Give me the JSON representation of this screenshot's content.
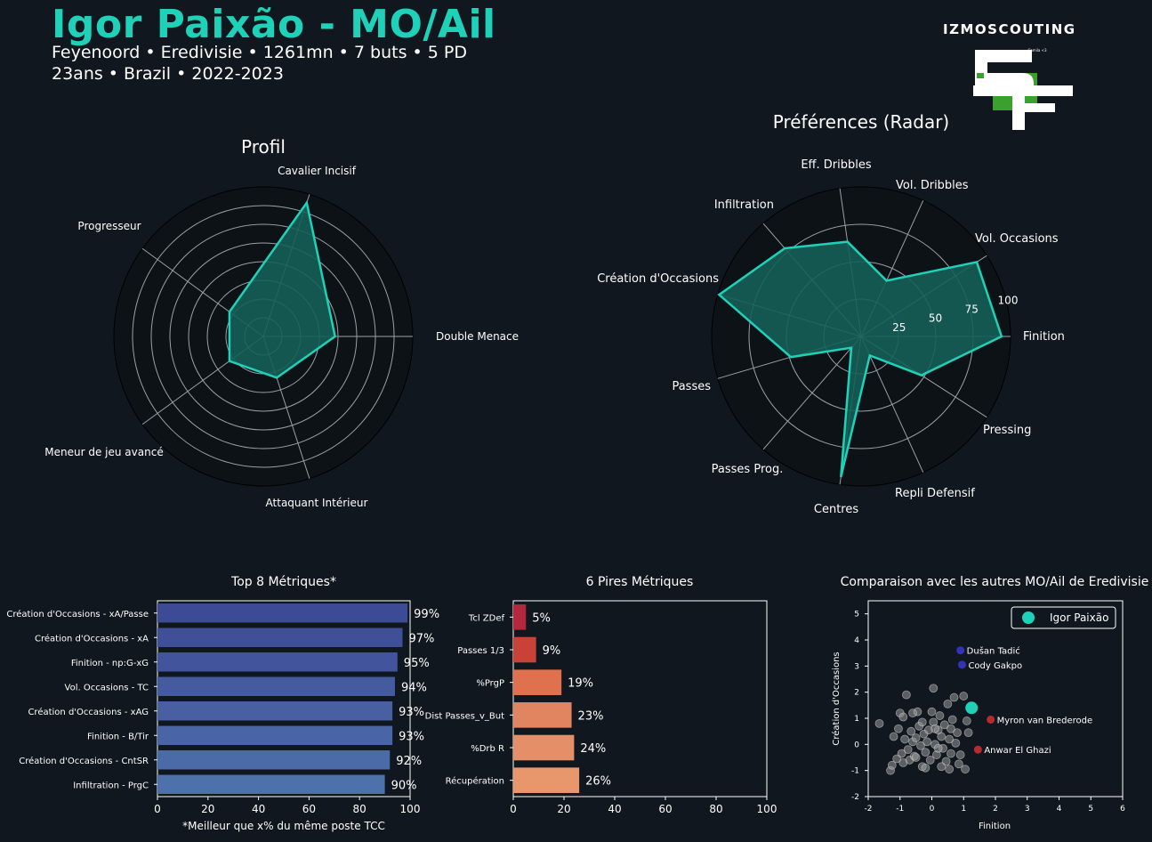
{
  "header": {
    "player_title": "Igor Paixão - MO/Ail",
    "line1": "Feyenoord • Eredivisie • 1261mn • 7 buts • 5 PD",
    "line2": "23ans • Brazil • 2022-2023",
    "brand": "IZMOSCOUTING",
    "logo_small_text": "Camila <3"
  },
  "colors": {
    "accent": "#1ed1b8",
    "background": "#10171e",
    "radar_fill": "#155f58",
    "grid": "#9aa1a6",
    "logo_green": "#3aa12e",
    "scatter_highlight": "#1ed1b8",
    "scatter_blue": "#3a3ad0",
    "scatter_red": "#d13030",
    "scatter_grey": "#9a9a9a"
  },
  "chart_data": [
    {
      "type": "radar",
      "title": "Profil",
      "categories": [
        "Double Menace",
        "Cavalier Incisif",
        "Progresseur",
        "Meneur de jeu avancé",
        "Attaquant Intérieur"
      ],
      "values": [
        48,
        94,
        28,
        28,
        29
      ],
      "rlim": [
        0,
        100
      ],
      "grid": true
    },
    {
      "type": "radar",
      "title": "Préférences (Radar)",
      "categories": [
        "Finition",
        "Vol. Occasions",
        "Vol. Dribbles",
        "Eff. Dribbles",
        "Infiltration",
        "Création d'Occasions",
        "Passes",
        "Passes Prog.",
        "Centres",
        "Repli Defensif",
        "Pressing"
      ],
      "values": [
        94,
        92,
        41,
        64,
        78,
        99,
        49,
        10,
        95,
        14,
        48
      ],
      "rlim": [
        0,
        100
      ],
      "tick_labels": [
        "25",
        "50",
        "75",
        "100"
      ],
      "grid": true
    },
    {
      "type": "bar",
      "orientation": "horizontal",
      "title": "Top 8 Métriques*",
      "xlabel": "*Meilleur que x% du même poste TCC",
      "categories": [
        "Création d'Occasions - xA/Passe",
        "Création d'Occasions - xA",
        "Finition - np:G-xG",
        "Vol. Occasions - TC",
        "Création d'Occasions - xAG",
        "Finition - B/Tir",
        "Création d'Occasions - CntSR",
        "Infiltration - PrgC"
      ],
      "values": [
        99,
        97,
        95,
        94,
        93,
        93,
        92,
        90
      ],
      "value_labels": [
        "99%",
        "97%",
        "95%",
        "94%",
        "93%",
        "93%",
        "92%",
        "90%"
      ],
      "colors": [
        "#3d4a95",
        "#3f4f98",
        "#42559c",
        "#455b9f",
        "#4860a2",
        "#4965a5",
        "#4b6ba8",
        "#4d71ab"
      ],
      "xlim": [
        0,
        100
      ],
      "xticks": [
        "0",
        "20",
        "40",
        "60",
        "80",
        "100"
      ]
    },
    {
      "type": "bar",
      "orientation": "horizontal",
      "title": "6 Pires Métriques",
      "categories": [
        "Tcl ZDef",
        "Passes 1/3",
        "%PrgP",
        "Dist Passes_v_But",
        "%Drb R",
        "Récupération"
      ],
      "values": [
        5,
        9,
        19,
        23,
        24,
        26
      ],
      "value_labels": [
        "5%",
        "9%",
        "19%",
        "23%",
        "24%",
        "26%"
      ],
      "colors": [
        "#b3283a",
        "#c94238",
        "#e0714f",
        "#e18560",
        "#e48f67",
        "#e8976d"
      ],
      "xlim": [
        0,
        100
      ],
      "xticks": [
        "0",
        "20",
        "40",
        "60",
        "80",
        "100"
      ]
    },
    {
      "type": "scatter",
      "title": "Comparaison avec les autres MO/Ail de Eredivisie",
      "xlabel": "Finition",
      "ylabel": "Création d'Occasions",
      "xlim": [
        -2,
        6
      ],
      "ylim": [
        -2,
        5.5
      ],
      "xticks": [
        "-2",
        "-1",
        "0",
        "1",
        "2",
        "3",
        "4",
        "5",
        "6"
      ],
      "yticks": [
        "-2",
        "-1",
        "0",
        "1",
        "2",
        "3",
        "4",
        "5"
      ],
      "legend": {
        "label": "Igor Paixão",
        "position": "top-right"
      },
      "highlight": {
        "name": "Igor Paixão",
        "x": 1.25,
        "y": 1.4
      },
      "labeled_points": [
        {
          "name": "Dušan Tadić",
          "x": 0.9,
          "y": 3.6,
          "group": "blue"
        },
        {
          "name": "Cody Gakpo",
          "x": 0.95,
          "y": 3.05,
          "group": "blue"
        },
        {
          "name": "Myron van Brederode",
          "x": 1.85,
          "y": 0.95,
          "group": "red"
        },
        {
          "name": "Anwar El Ghazi",
          "x": 1.45,
          "y": -0.2,
          "group": "red"
        }
      ],
      "others": [
        [
          -1.65,
          0.8
        ],
        [
          -1.3,
          -1.0
        ],
        [
          -1.25,
          -0.8
        ],
        [
          -1.2,
          0.3
        ],
        [
          -1.05,
          0.6
        ],
        [
          -1.0,
          1.2
        ],
        [
          -0.9,
          1.05
        ],
        [
          -0.8,
          1.9
        ],
        [
          -0.85,
          0.2
        ],
        [
          -0.75,
          -0.2
        ],
        [
          -0.7,
          -0.6
        ],
        [
          -0.95,
          -0.35
        ],
        [
          -0.6,
          0.1
        ],
        [
          -0.55,
          -0.45
        ],
        [
          -0.5,
          0.25
        ],
        [
          -0.45,
          1.25
        ],
        [
          -0.4,
          0.7
        ],
        [
          -0.35,
          -0.05
        ],
        [
          -0.3,
          -0.85
        ],
        [
          -0.25,
          0.4
        ],
        [
          -0.2,
          -0.3
        ],
        [
          -0.15,
          0.1
        ],
        [
          -0.1,
          0.55
        ],
        [
          -0.05,
          -0.6
        ],
        [
          0.0,
          1.25
        ],
        [
          0.05,
          0.85
        ],
        [
          0.05,
          2.15
        ],
        [
          0.1,
          0.0
        ],
        [
          0.15,
          -0.4
        ],
        [
          0.2,
          0.55
        ],
        [
          0.25,
          1.1
        ],
        [
          0.3,
          0.3
        ],
        [
          0.35,
          -0.15
        ],
        [
          0.4,
          0.75
        ],
        [
          0.45,
          -0.65
        ],
        [
          0.5,
          1.55
        ],
        [
          0.55,
          0.2
        ],
        [
          0.6,
          -0.35
        ],
        [
          0.65,
          0.95
        ],
        [
          0.7,
          1.8
        ],
        [
          0.75,
          0.05
        ],
        [
          0.8,
          0.45
        ],
        [
          0.85,
          -0.75
        ],
        [
          0.9,
          -0.4
        ],
        [
          1.0,
          1.85
        ],
        [
          1.05,
          -0.95
        ],
        [
          1.1,
          0.9
        ],
        [
          1.15,
          0.45
        ],
        [
          -0.6,
          1.2
        ],
        [
          -0.2,
          -0.9
        ],
        [
          0.1,
          0.6
        ],
        [
          0.3,
          -0.85
        ],
        [
          0.55,
          -0.95
        ],
        [
          -0.9,
          -0.7
        ],
        [
          -0.5,
          -0.5
        ],
        [
          -0.3,
          0.85
        ],
        [
          0.2,
          -0.15
        ],
        [
          0.6,
          0.6
        ],
        [
          -1.1,
          -0.55
        ],
        [
          -0.65,
          0.5
        ]
      ]
    }
  ]
}
